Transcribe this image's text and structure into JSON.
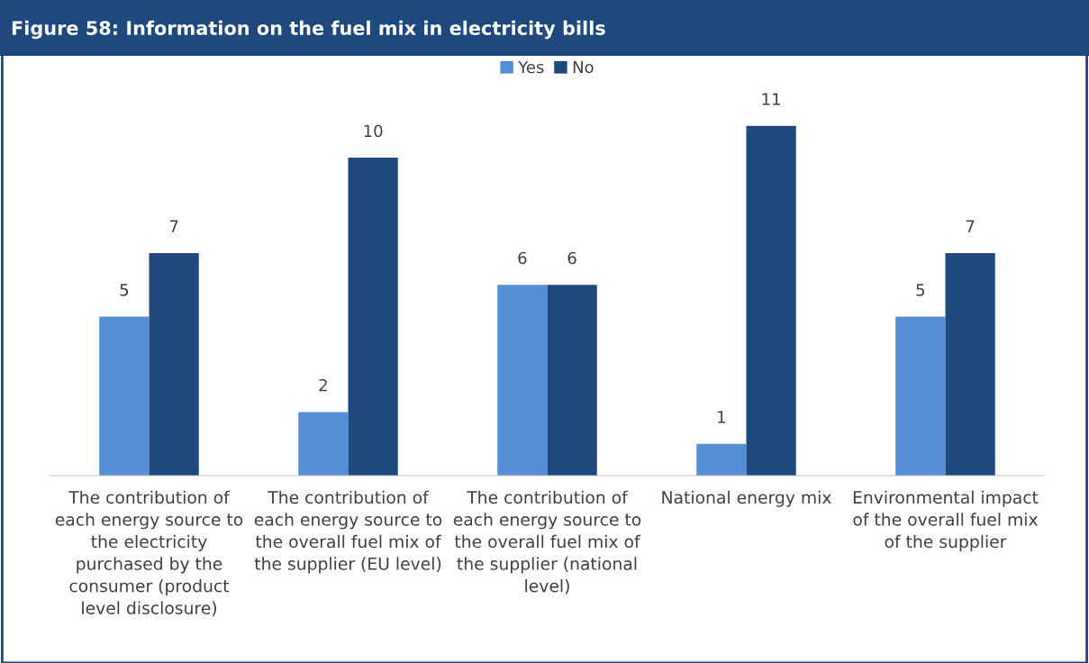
{
  "chart_data": {
    "type": "bar",
    "title": "Figure 58: Information on the fuel mix in electricity bills",
    "categories": [
      "The contribution of\neach energy source to\nthe electricity\npurchased by the\nconsumer (product\nlevel disclosure)",
      "The contribution of\neach energy source to\nthe overall fuel mix of\nthe supplier (EU level)",
      "The contribution of\neach energy source to\nthe overall fuel mix of\nthe supplier (national\nlevel)",
      "National energy mix",
      "Environmental impact\nof the overall fuel mix\nof the supplier"
    ],
    "series": [
      {
        "name": "Yes",
        "color": "#558ed5",
        "values": [
          5,
          2,
          6,
          1,
          5
        ]
      },
      {
        "name": "No",
        "color": "#1f497d",
        "values": [
          7,
          10,
          6,
          11,
          7
        ]
      }
    ],
    "data_labels": true,
    "legend": "top",
    "grid": false
  }
}
